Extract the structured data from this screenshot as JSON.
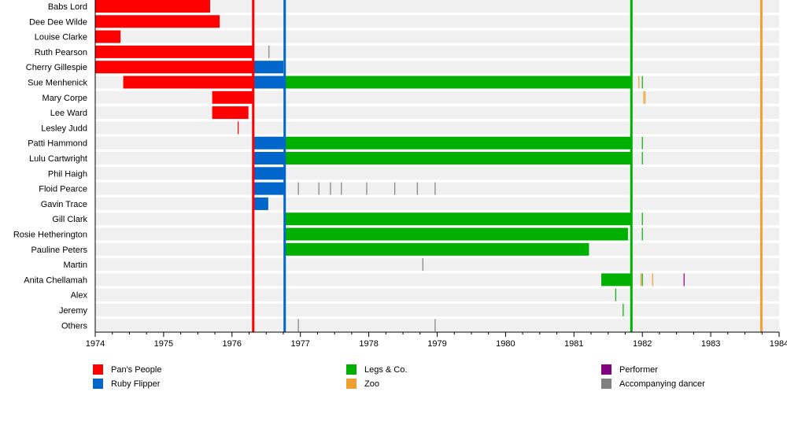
{
  "chart_data": {
    "type": "timeline",
    "xlim": [
      1974,
      1984
    ],
    "x_ticks": [
      "1974",
      "1975",
      "1976",
      "1977",
      "1978",
      "1979",
      "1980",
      "1981",
      "1982",
      "1983",
      "1984"
    ],
    "groups": [
      {
        "name": "Pan's People",
        "color": "#ff0000"
      },
      {
        "name": "Ruby Flipper",
        "color": "#0066cc"
      },
      {
        "name": "Legs & Co.",
        "color": "#00b000"
      },
      {
        "name": "Zoo",
        "color": "#f0a030"
      },
      {
        "name": "Performer",
        "color": "#800080"
      },
      {
        "name": "Accompanying dancer",
        "color": "#808080"
      }
    ],
    "group_lines": [
      {
        "group": "Pan's People",
        "x": 1976.31
      },
      {
        "group": "Ruby Flipper",
        "x": 1976.77
      },
      {
        "group": "Legs & Co.",
        "x": 1981.84
      },
      {
        "group": "Zoo",
        "x": 1983.74
      }
    ],
    "rows": [
      {
        "name": "Babs Lord",
        "bars": [
          {
            "g": 0,
            "from": 1974,
            "to": 1975.68
          }
        ],
        "ticks": []
      },
      {
        "name": "Dee Dee Wilde",
        "bars": [
          {
            "g": 0,
            "from": 1974,
            "to": 1975.82
          }
        ],
        "ticks": []
      },
      {
        "name": "Louise Clarke",
        "bars": [
          {
            "g": 0,
            "from": 1974,
            "to": 1974.37
          }
        ],
        "ticks": []
      },
      {
        "name": "Ruth Pearson",
        "bars": [
          {
            "g": 0,
            "from": 1974,
            "to": 1976.31
          }
        ],
        "ticks": [
          {
            "g": 5,
            "x": 1976.54
          }
        ]
      },
      {
        "name": "Cherry Gillespie",
        "bars": [
          {
            "g": 0,
            "from": 1974,
            "to": 1976.31
          },
          {
            "g": 1,
            "from": 1976.31,
            "to": 1976.75
          }
        ],
        "ticks": []
      },
      {
        "name": "Sue Menhenick",
        "bars": [
          {
            "g": 0,
            "from": 1974.41,
            "to": 1976.31
          },
          {
            "g": 1,
            "from": 1976.31,
            "to": 1976.77
          },
          {
            "g": 2,
            "from": 1976.77,
            "to": 1981.84
          }
        ],
        "ticks": [
          {
            "g": 3,
            "x": 1981.95
          },
          {
            "g": 2,
            "x": 1982.0
          }
        ]
      },
      {
        "name": "Mary Corpe",
        "bars": [
          {
            "g": 0,
            "from": 1975.71,
            "to": 1976.31
          }
        ],
        "ticks": [
          {
            "g": 3,
            "x": 1982.02
          },
          {
            "g": 3,
            "x": 1982.04
          }
        ]
      },
      {
        "name": "Lee Ward",
        "bars": [
          {
            "g": 0,
            "from": 1975.71,
            "to": 1976.24
          }
        ],
        "ticks": []
      },
      {
        "name": "Lesley Judd",
        "bars": [],
        "ticks": [
          {
            "g": 0,
            "x": 1976.09
          }
        ]
      },
      {
        "name": "Patti Hammond",
        "bars": [
          {
            "g": 1,
            "from": 1976.31,
            "to": 1976.77
          },
          {
            "g": 2,
            "from": 1976.77,
            "to": 1981.84
          }
        ],
        "ticks": [
          {
            "g": 2,
            "x": 1982.0
          }
        ]
      },
      {
        "name": "Lulu Cartwright",
        "bars": [
          {
            "g": 1,
            "from": 1976.31,
            "to": 1976.77
          },
          {
            "g": 2,
            "from": 1976.77,
            "to": 1981.84
          }
        ],
        "ticks": [
          {
            "g": 2,
            "x": 1982.0
          }
        ]
      },
      {
        "name": "Phil Haigh",
        "bars": [
          {
            "g": 1,
            "from": 1976.31,
            "to": 1976.77
          }
        ],
        "ticks": []
      },
      {
        "name": "Floid Pearce",
        "bars": [
          {
            "g": 1,
            "from": 1976.31,
            "to": 1976.77
          }
        ],
        "ticks": [
          {
            "g": 5,
            "x": 1976.97
          },
          {
            "g": 5,
            "x": 1977.27
          },
          {
            "g": 5,
            "x": 1977.44
          },
          {
            "g": 5,
            "x": 1977.6
          },
          {
            "g": 5,
            "x": 1977.97
          },
          {
            "g": 5,
            "x": 1978.38
          },
          {
            "g": 5,
            "x": 1978.71
          },
          {
            "g": 5,
            "x": 1978.97
          }
        ]
      },
      {
        "name": "Gavin Trace",
        "bars": [
          {
            "g": 1,
            "from": 1976.31,
            "to": 1976.53
          }
        ],
        "ticks": []
      },
      {
        "name": "Gill Clark",
        "bars": [
          {
            "g": 2,
            "from": 1976.77,
            "to": 1981.84
          }
        ],
        "ticks": [
          {
            "g": 2,
            "x": 1982.0
          }
        ]
      },
      {
        "name": "Rosie Hetherington",
        "bars": [
          {
            "g": 2,
            "from": 1976.77,
            "to": 1981.79
          }
        ],
        "ticks": [
          {
            "g": 2,
            "x": 1982.0
          }
        ]
      },
      {
        "name": "Pauline Peters",
        "bars": [
          {
            "g": 2,
            "from": 1976.77,
            "to": 1981.22
          }
        ],
        "ticks": []
      },
      {
        "name": "Martin",
        "bars": [],
        "ticks": [
          {
            "g": 5,
            "x": 1978.79
          }
        ]
      },
      {
        "name": "Anita Chellamah",
        "bars": [
          {
            "g": 2,
            "from": 1981.4,
            "to": 1981.84
          }
        ],
        "ticks": [
          {
            "g": 3,
            "x": 1981.85
          },
          {
            "g": 3,
            "x": 1981.98
          },
          {
            "g": 2,
            "x": 1982.0
          },
          {
            "g": 3,
            "x": 1982.15
          },
          {
            "g": 4,
            "x": 1982.61
          }
        ]
      },
      {
        "name": "Alex",
        "bars": [],
        "ticks": [
          {
            "g": 2,
            "x": 1981.61
          }
        ]
      },
      {
        "name": "Jeremy",
        "bars": [],
        "ticks": [
          {
            "g": 2,
            "x": 1981.72
          }
        ]
      },
      {
        "name": "Others",
        "bars": [],
        "ticks": [
          {
            "g": 5,
            "x": 1976.97
          },
          {
            "g": 5,
            "x": 1978.97
          }
        ]
      }
    ]
  }
}
